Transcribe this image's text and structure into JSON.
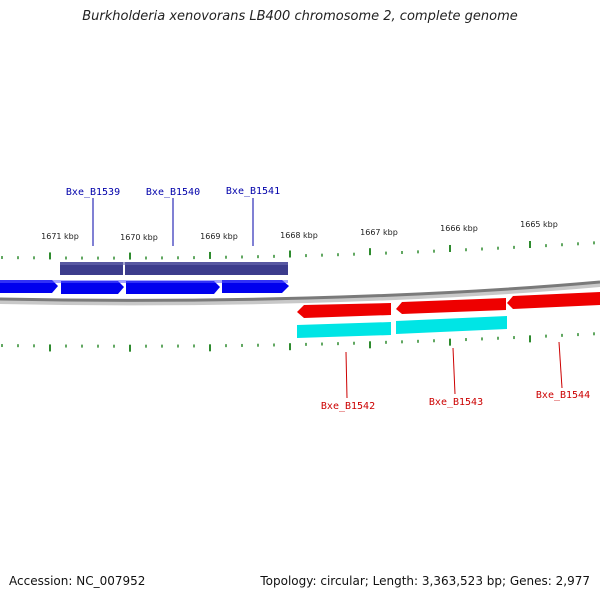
{
  "title": "Burkholderia xenovorans LB400 chromosome 2, complete genome",
  "footer": {
    "accession": "Accession: NC_007952",
    "summary": "Topology: circular; Length: 3,363,523 bp; Genes: 2,977"
  },
  "colors": {
    "forward_cds": "#0000ee",
    "forward_gene": "#3c3c8c",
    "reverse_cds": "#ee0000",
    "reverse_gene": "#00e5e5",
    "backbone": "#808080",
    "tick": "#2e8b2e",
    "forward_label": "#0000aa",
    "reverse_label": "#cc0000"
  },
  "ticks": [
    "1671 kbp",
    "1670 kbp",
    "1669 kbp",
    "1668 kbp",
    "1667 kbp",
    "1666 kbp",
    "1665 kbp"
  ],
  "genes_forward": [
    "Bxe_B1539",
    "Bxe_B1540",
    "Bxe_B1541"
  ],
  "genes_reverse": [
    "Bxe_B1542",
    "Bxe_B1543",
    "Bxe_B1544"
  ]
}
